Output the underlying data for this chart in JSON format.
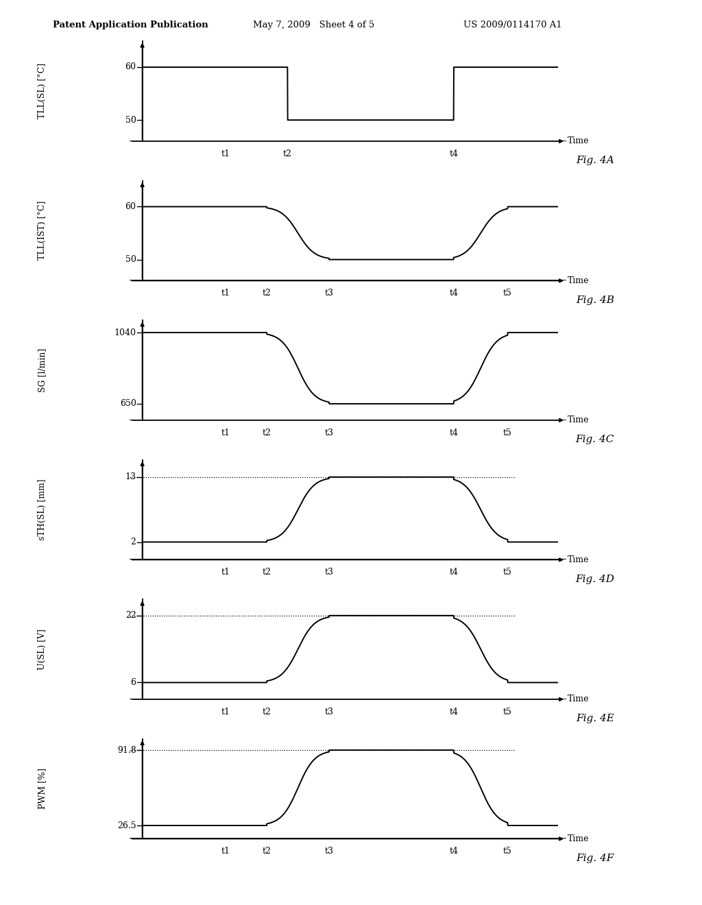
{
  "header_left": "Patent Application Publication",
  "header_mid": "May 7, 2009   Sheet 4 of 5",
  "header_right": "US 2009/0114170 A1",
  "background_color": "#ffffff",
  "line_color": "#000000",
  "figures": [
    {
      "label": "Fig. 4A",
      "ylabel": "TLL(SL) [°C]",
      "yticks": [
        50,
        60
      ],
      "ylim": [
        46,
        65
      ],
      "xtick_labels": [
        "t1",
        "t2",
        "t4"
      ],
      "xtick_positions": [
        2.0,
        3.5,
        7.5
      ],
      "has_dotted": false,
      "dotted_y": null,
      "type": "step",
      "t_params": [
        2.0,
        3.5,
        null,
        7.5,
        null
      ]
    },
    {
      "label": "Fig. 4B",
      "ylabel": "TLL(IST) [°C]",
      "yticks": [
        50,
        60
      ],
      "ylim": [
        46,
        65
      ],
      "xtick_labels": [
        "t1",
        "t2",
        "t3",
        "t4",
        "t5"
      ],
      "xtick_positions": [
        2.0,
        3.0,
        4.5,
        7.5,
        8.8
      ],
      "has_dotted": false,
      "dotted_y": null,
      "type": "smooth_down_up",
      "t_params": [
        2.0,
        3.0,
        4.5,
        7.5,
        8.8
      ]
    },
    {
      "label": "Fig. 4C",
      "ylabel": "SG [l/min]",
      "yticks": [
        650,
        1040
      ],
      "ylim": [
        560,
        1110
      ],
      "xtick_labels": [
        "t1",
        "t2",
        "t3",
        "t4",
        "t5"
      ],
      "xtick_positions": [
        2.0,
        3.0,
        4.5,
        7.5,
        8.8
      ],
      "has_dotted": false,
      "dotted_y": null,
      "type": "smooth_down_up",
      "t_params": [
        2.0,
        3.0,
        4.5,
        7.5,
        8.8
      ]
    },
    {
      "label": "Fig. 4D",
      "ylabel": "sTH(SL) [mm]",
      "yticks": [
        2,
        13
      ],
      "ylim": [
        -1,
        16
      ],
      "xtick_labels": [
        "t1",
        "t2",
        "t3",
        "t4",
        "t5"
      ],
      "xtick_positions": [
        2.0,
        3.0,
        4.5,
        7.5,
        8.8
      ],
      "has_dotted": true,
      "dotted_y": 13,
      "type": "smooth_up_down",
      "t_params": [
        2.0,
        3.0,
        4.5,
        7.5,
        8.8
      ]
    },
    {
      "label": "Fig. 4E",
      "ylabel": "U(SL) [V]",
      "yticks": [
        6,
        22
      ],
      "ylim": [
        2,
        26
      ],
      "xtick_labels": [
        "t1",
        "t2",
        "t3",
        "t4",
        "t5"
      ],
      "xtick_positions": [
        2.0,
        3.0,
        4.5,
        7.5,
        8.8
      ],
      "has_dotted": true,
      "dotted_y": 22,
      "type": "smooth_up_down",
      "t_params": [
        2.0,
        3.0,
        4.5,
        7.5,
        8.8
      ]
    },
    {
      "label": "Fig. 4F",
      "ylabel": "PWM [%]",
      "yticks": [
        26.5,
        91.8
      ],
      "ylim": [
        15,
        102
      ],
      "xtick_labels": [
        "t1",
        "t2",
        "t3",
        "t4",
        "t5"
      ],
      "xtick_positions": [
        2.0,
        3.0,
        4.5,
        7.5,
        8.8
      ],
      "has_dotted": true,
      "dotted_y": 91.8,
      "type": "smooth_up_down",
      "t_params": [
        2.0,
        3.0,
        4.5,
        7.5,
        8.8
      ]
    }
  ]
}
